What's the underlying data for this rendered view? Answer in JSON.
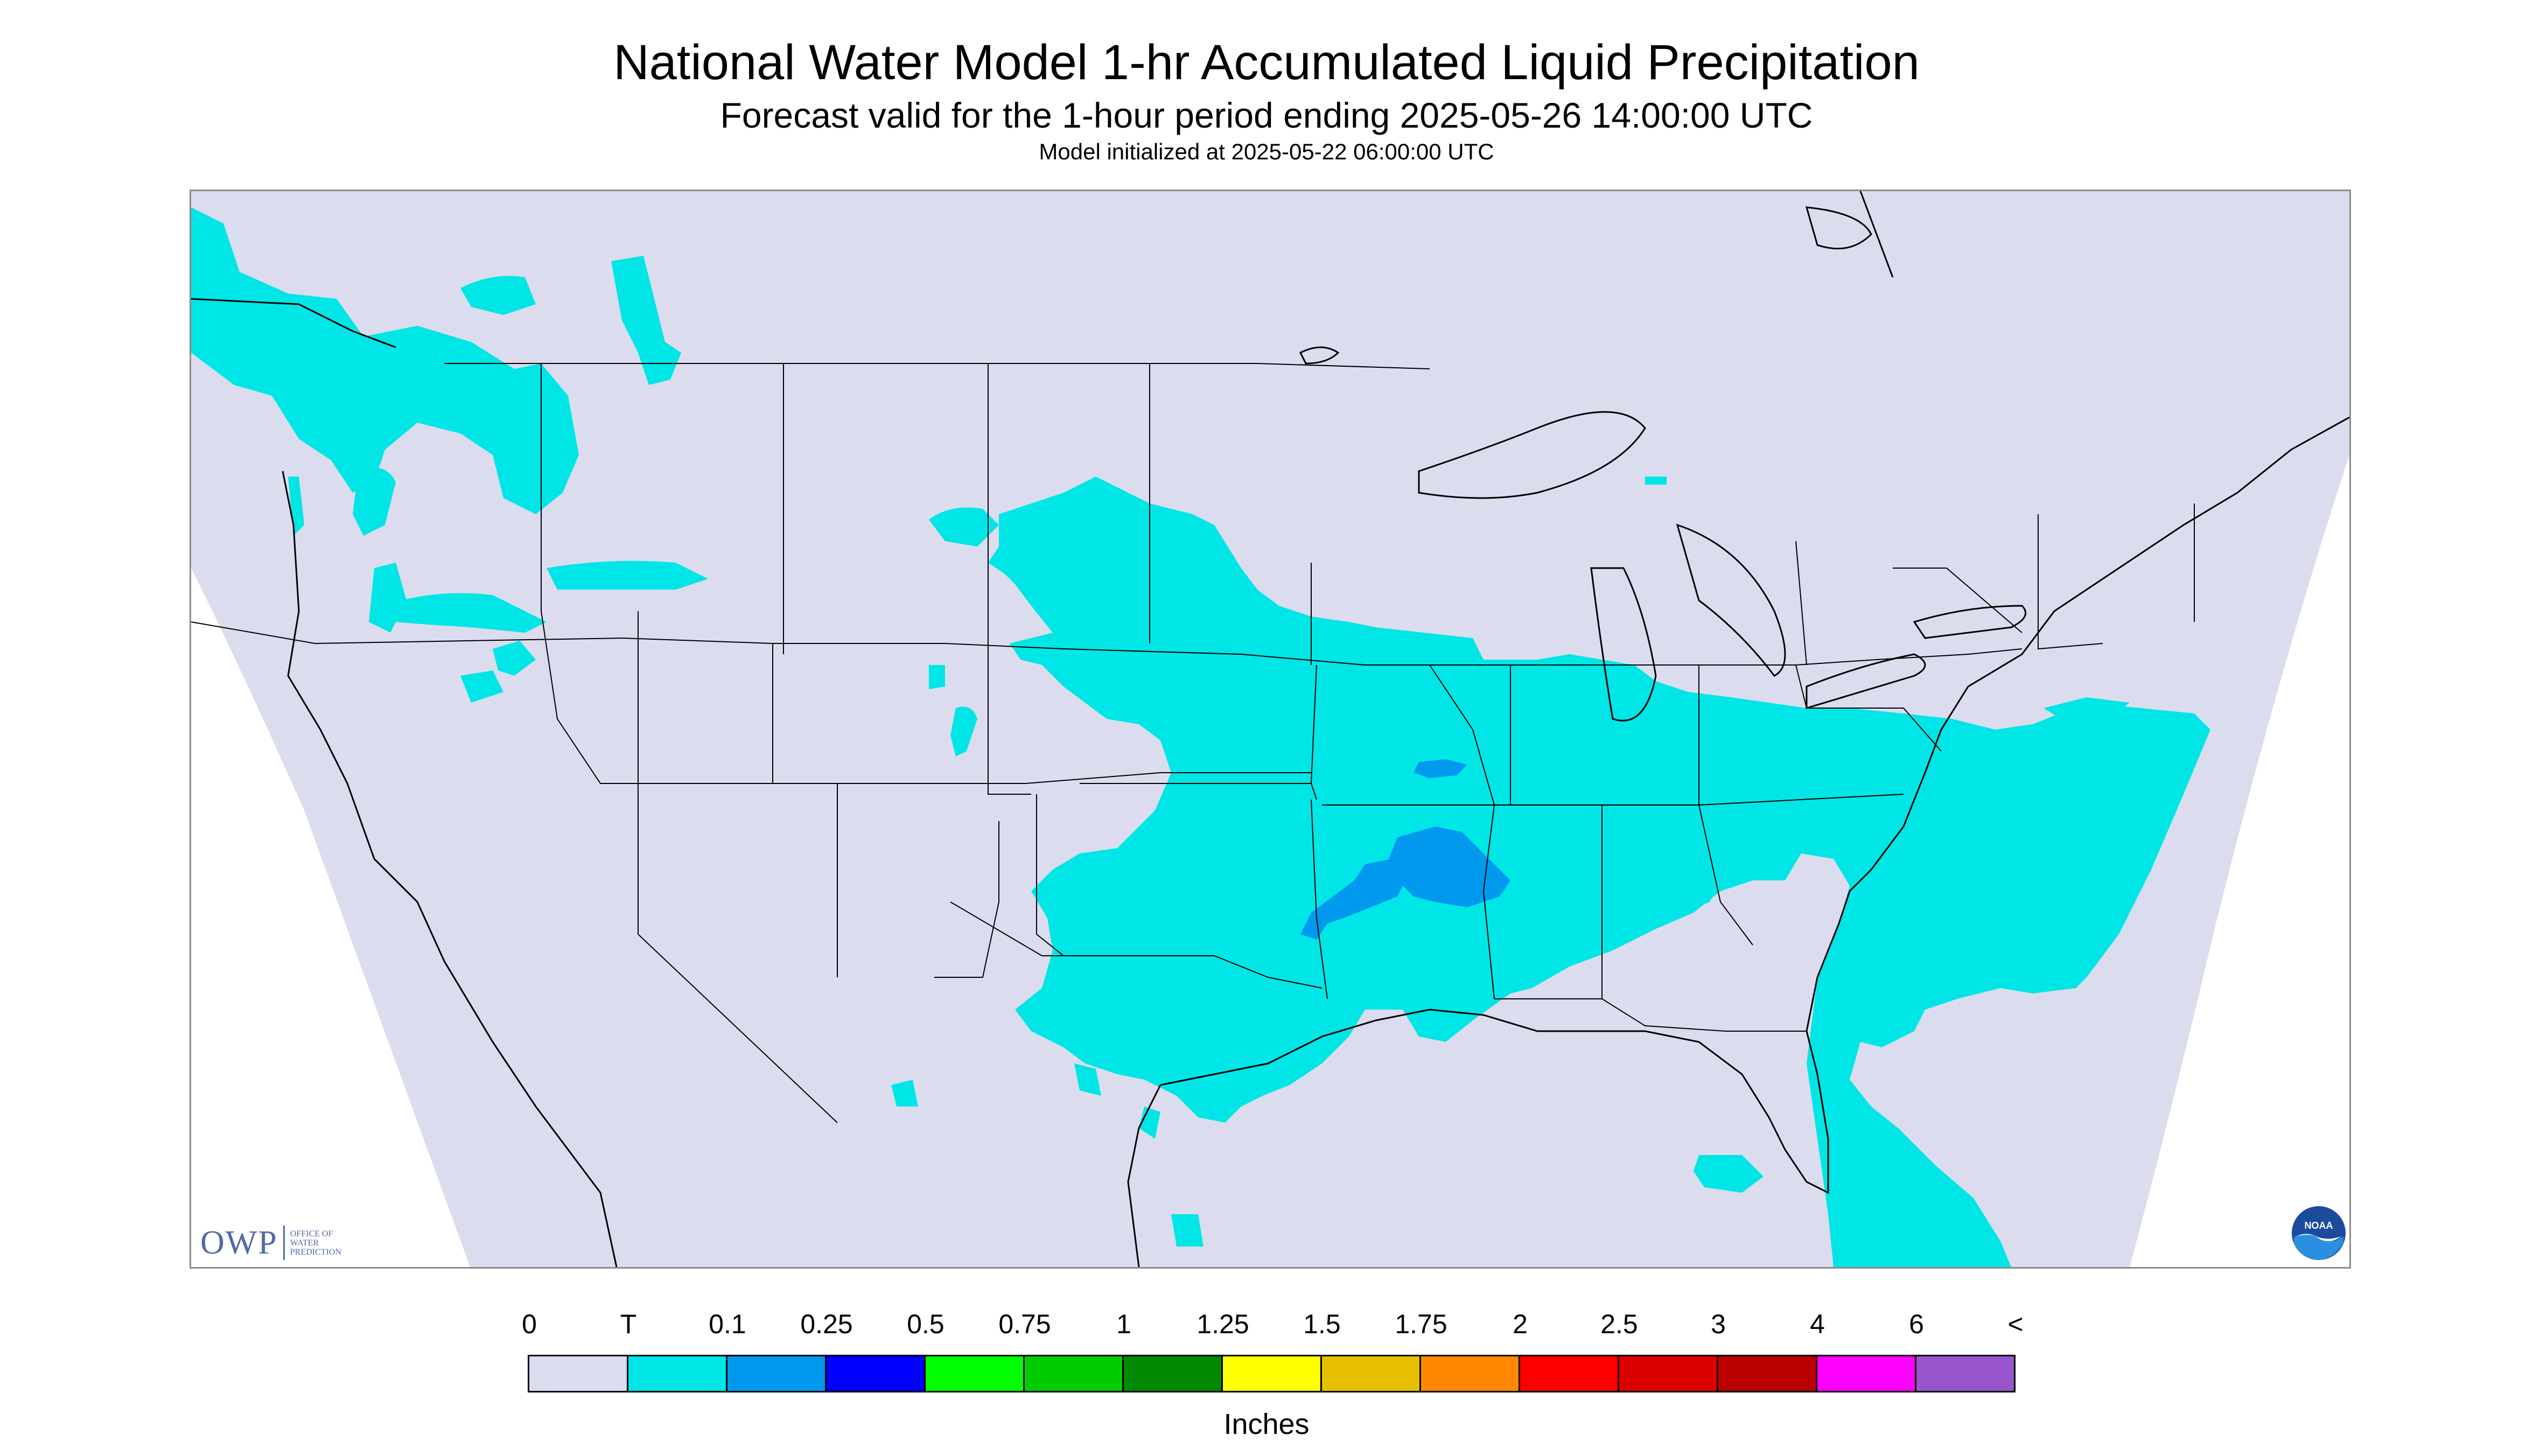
{
  "title": "National Water Model 1-hr Accumulated Liquid Precipitation",
  "subtitle": "Forecast valid for the 1-hour period ending 2025-05-26 14:00:00 UTC",
  "model_init": "Model initialized at 2025-05-22 06:00:00 UTC",
  "logos": {
    "owp_mark": "OWP",
    "owp_text": [
      "OFFICE OF",
      "WATER",
      "PREDICTION"
    ],
    "noaa_text": "NOAA"
  },
  "legend": {
    "units": "Inches",
    "labels": [
      "0",
      "T",
      "0.1",
      "0.25",
      "0.5",
      "0.75",
      "1",
      "1.25",
      "1.5",
      "1.75",
      "2",
      "2.5",
      "3",
      "4",
      "6",
      "<"
    ],
    "colors": [
      "#dcdcef",
      "#00e6e6",
      "#0099ee",
      "#0000ff",
      "#00ff00",
      "#00cc00",
      "#008800",
      "#ffff00",
      "#e6c000",
      "#ff8800",
      "#ff0000",
      "#dd0000",
      "#bb0000",
      "#ff00ff",
      "#9955cc"
    ]
  },
  "map": {
    "background_color": "#dcdcef",
    "outside_color": "#ffffff",
    "precip_light_color": "#00e6e6",
    "precip_moderate_color": "#0099ee",
    "boundary_color": "#000000"
  }
}
